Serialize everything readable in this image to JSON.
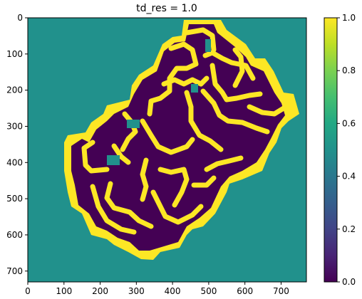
{
  "chart_data": {
    "type": "heatmap",
    "title": "td_res = 1.0",
    "xlabel": "",
    "ylabel": "",
    "image_width": 770,
    "image_height": 730,
    "xlim": [
      0,
      770
    ],
    "ylim": [
      730,
      0
    ],
    "x_ticks": [
      0,
      100,
      200,
      300,
      400,
      500,
      600,
      700
    ],
    "y_ticks": [
      0,
      100,
      200,
      300,
      400,
      500,
      600,
      700
    ],
    "colormap": "viridis",
    "colorbar": {
      "range": [
        0.0,
        1.0
      ],
      "ticks": [
        0.0,
        0.2,
        0.4,
        0.6,
        0.8,
        1.0
      ],
      "tick_labels": [
        "0.0",
        "0.2",
        "0.4",
        "0.6",
        "0.8",
        "1.0"
      ]
    },
    "levels": {
      "background": 0.5,
      "wall_outline": 1.0,
      "interior": 0.0
    },
    "colors": {
      "background": "#21918c",
      "wall_outline": "#fde725",
      "interior": "#440154"
    },
    "grid": false
  }
}
